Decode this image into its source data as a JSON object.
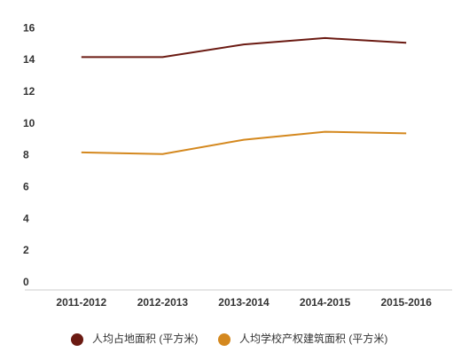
{
  "chart_data": {
    "type": "line",
    "categories": [
      "2011-2012",
      "2012-2013",
      "2013-2014",
      "2014-2015",
      "2015-2016"
    ],
    "series": [
      {
        "name": "人均占地面积 (平方米)",
        "color": "#6b1a12",
        "values": [
          14.2,
          14.2,
          15.0,
          15.4,
          15.1
        ]
      },
      {
        "name": "人均学校产权建筑面积 (平方米)",
        "color": "#d4881e",
        "values": [
          8.2,
          8.1,
          9.0,
          9.5,
          9.4
        ]
      }
    ],
    "ylim": [
      -0.4,
      16.4
    ],
    "yticks": [
      0,
      2,
      4,
      6,
      8,
      10,
      12,
      14,
      16
    ],
    "grid": false,
    "legend": "bottom"
  }
}
